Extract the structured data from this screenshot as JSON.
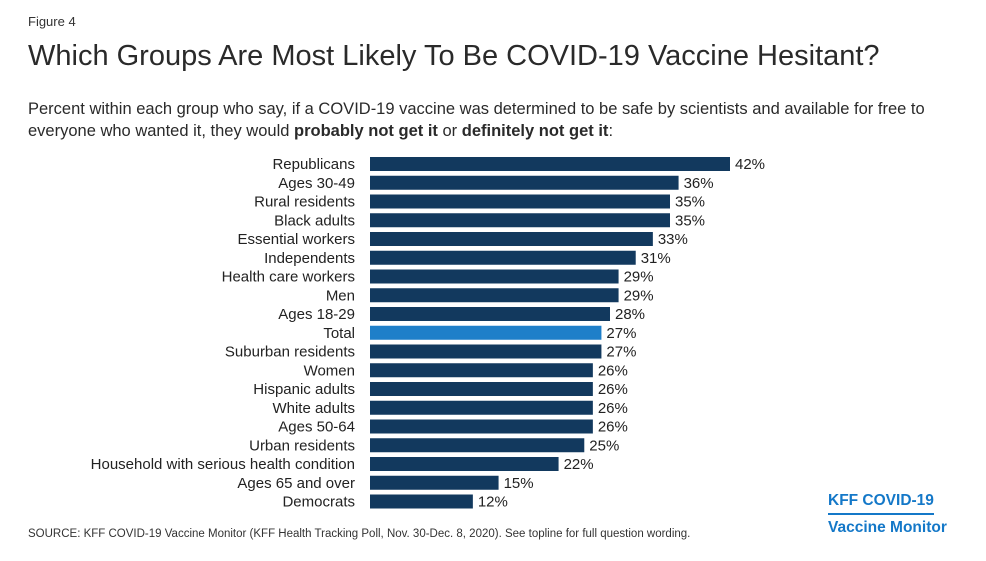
{
  "figure_label": "Figure 4",
  "title": "Which Groups Are Most Likely To Be COVID-19 Vaccine Hesitant?",
  "subtitle": {
    "text_prefix": "Percent within each group who say, if a COVID-19 vaccine was determined to be safe by scientists and available for free to everyone who wanted it, they would ",
    "bold_1": "probably not get it",
    "middle": " or ",
    "bold_2": "definitely not get it",
    "suffix": ":"
  },
  "source": "SOURCE: KFF COVID-19 Vaccine Monitor (KFF Health Tracking Poll, Nov. 30-Dec. 8, 2020). See topline for full question wording.",
  "brand": {
    "line1": "KFF COVID-19",
    "line2": "Vaccine Monitor",
    "color": "#1478c8"
  },
  "colors": {
    "bar": "#12395e",
    "highlight": "#1e7fc9"
  },
  "chart_data": {
    "type": "bar",
    "orientation": "horizontal",
    "value_suffix": "%",
    "highlight_category": "Total",
    "categories": [
      "Republicans",
      "Ages 30-49",
      "Rural residents",
      "Black adults",
      "Essential workers",
      "Independents",
      "Health care workers",
      "Men",
      "Ages 18-29",
      "Total",
      "Suburban residents",
      "Women",
      "Hispanic adults",
      "White adults",
      "Ages 50-64",
      "Urban residents",
      "Household with serious health condition",
      "Ages 65 and over",
      "Democrats"
    ],
    "values": [
      42,
      36,
      35,
      35,
      33,
      31,
      29,
      29,
      28,
      27,
      27,
      26,
      26,
      26,
      26,
      25,
      22,
      15,
      12
    ],
    "xlim": [
      0,
      42
    ]
  }
}
